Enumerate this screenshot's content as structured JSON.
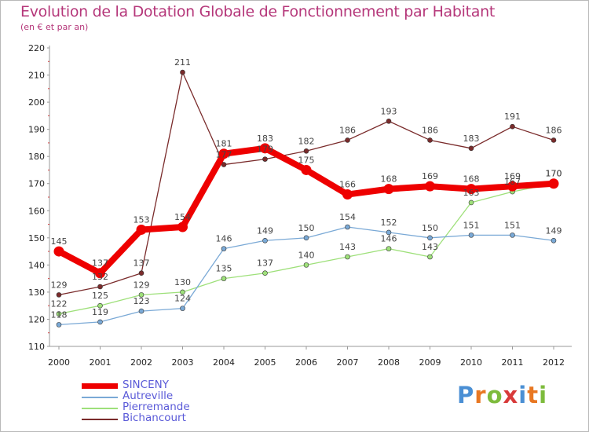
{
  "header": {
    "title": "Evolution de la Dotation Globale de Fonctionnement par Habitant",
    "subtitle": "(en € et par an)"
  },
  "logo": {
    "text": "Proxiti",
    "letters": [
      "P",
      "r",
      "o",
      "x",
      "i",
      "t",
      "i"
    ],
    "colors": [
      "#4a8fd4",
      "#e87722",
      "#7dbb3c",
      "#d83a3a",
      "#4a8fd4",
      "#e87722",
      "#7dbb3c"
    ]
  },
  "chart_data": {
    "type": "line",
    "title": "Evolution de la Dotation Globale de Fonctionnement par Habitant",
    "subtitle": "(en € et par an)",
    "xlabel": "",
    "ylabel": "",
    "x": [
      "2000",
      "2001",
      "2002",
      "2003",
      "2004",
      "2005",
      "2006",
      "2007",
      "2008",
      "2009",
      "2010",
      "2011",
      "2012"
    ],
    "ylim": [
      110,
      220
    ],
    "yticks": [
      110,
      120,
      130,
      140,
      150,
      160,
      170,
      180,
      190,
      200,
      210,
      220
    ],
    "grid": false,
    "legend_position": "bottom-left",
    "series": [
      {
        "name": "Bichancourt",
        "color": "#7a2b2b",
        "values": [
          129,
          132,
          137,
          211,
          177,
          179,
          182,
          186,
          193,
          186,
          183,
          191,
          186
        ],
        "labels": [
          "129",
          "132",
          "137",
          "211",
          "177",
          "179",
          "182",
          "186",
          "193",
          "186",
          "183",
          "191",
          "186"
        ]
      },
      {
        "name": "Pierremande",
        "color": "#9ee07a",
        "values": [
          122,
          125,
          129,
          130,
          135,
          137,
          140,
          143,
          146,
          143,
          163,
          167,
          170
        ],
        "labels": [
          "122",
          "125",
          "129",
          "130",
          "135",
          "137",
          "140",
          "143",
          "146",
          "143",
          "163",
          "167",
          "170"
        ]
      },
      {
        "name": "Autreville",
        "color": "#7aa9d6",
        "values": [
          118,
          119,
          123,
          124,
          146,
          149,
          150,
          154,
          152,
          150,
          151,
          151,
          149
        ],
        "labels": [
          "118",
          "119",
          "123",
          "124",
          "146",
          "149",
          "150",
          "154",
          "152",
          "150",
          "151",
          "151",
          "149"
        ]
      },
      {
        "name": "SINCENY",
        "color": "#ee0000",
        "values": [
          145,
          137,
          153,
          154,
          181,
          183,
          175,
          166,
          168,
          169,
          168,
          169,
          170
        ],
        "labels": [
          "145",
          "137",
          "153",
          "154",
          "181",
          "183",
          "175",
          "166",
          "168",
          "169",
          "168",
          "169",
          "170"
        ]
      }
    ],
    "legend": [
      {
        "name": "SINCENY",
        "color": "#ee0000",
        "text_color": "#5a5ad8"
      },
      {
        "name": "Autreville",
        "color": "#7aa9d6",
        "text_color": "#5a5ad8"
      },
      {
        "name": "Pierremande",
        "color": "#9ee07a",
        "text_color": "#5a5ad8"
      },
      {
        "name": "Bichancourt",
        "color": "#7a2b2b",
        "text_color": "#5a5ad8"
      }
    ]
  }
}
